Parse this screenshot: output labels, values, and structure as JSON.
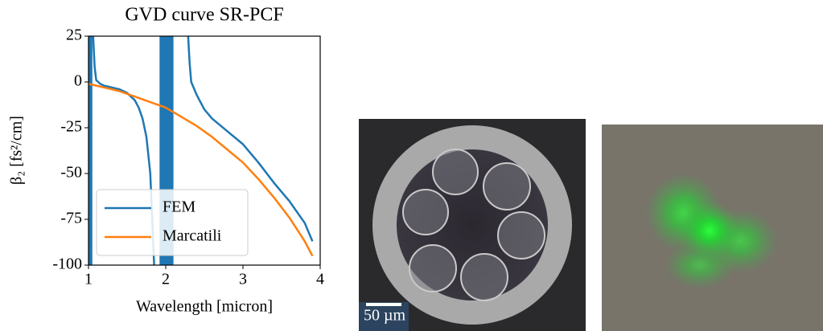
{
  "chart_data": {
    "type": "line",
    "title": "GVD curve SR-PCF",
    "xlabel": "Wavelength [micron]",
    "ylabel": "β₂ [fs²/cm]",
    "xlim": [
      1,
      4
    ],
    "ylim": [
      -100,
      25
    ],
    "xticks": [
      1,
      2,
      3,
      4
    ],
    "yticks": [
      25,
      0,
      -25,
      -50,
      -75,
      -100
    ],
    "legend": "lower left",
    "bands": [
      [
        1.0,
        1.05
      ],
      [
        1.92,
        2.1
      ]
    ],
    "band_color": "#1f77b4",
    "series": [
      {
        "name": "FEM",
        "color": "#1f77b4",
        "x": [
          1.06,
          1.08,
          1.1,
          1.15,
          1.2,
          1.3,
          1.4,
          1.5,
          1.6,
          1.65,
          1.7,
          1.75,
          1.8,
          1.85,
          2.0,
          2.29,
          2.31,
          2.33,
          2.4,
          2.5,
          2.6,
          2.8,
          3.0,
          3.2,
          3.4,
          3.6,
          3.8,
          3.9
        ],
        "values": [
          25,
          8,
          1,
          -1,
          -2,
          -3,
          -4,
          -6,
          -10,
          -14,
          -20,
          -30,
          -50,
          -100,
          null,
          25,
          10,
          0,
          -7,
          -15,
          -20,
          -27,
          -34,
          -44,
          -55,
          -65,
          -77,
          -87
        ]
      },
      {
        "name": "Marcatili",
        "color": "#ff7f0e",
        "x": [
          1.0,
          1.2,
          1.4,
          1.6,
          1.8,
          2.0,
          2.2,
          2.4,
          2.6,
          2.8,
          3.0,
          3.2,
          3.4,
          3.6,
          3.8,
          3.9
        ],
        "values": [
          -1,
          -3,
          -5,
          -8,
          -11,
          -14,
          -19,
          -24,
          -30,
          -37,
          -44,
          -53,
          -63,
          -74,
          -87,
          -95
        ]
      }
    ]
  },
  "photos": {
    "scale_bar_label": "50 µm"
  }
}
